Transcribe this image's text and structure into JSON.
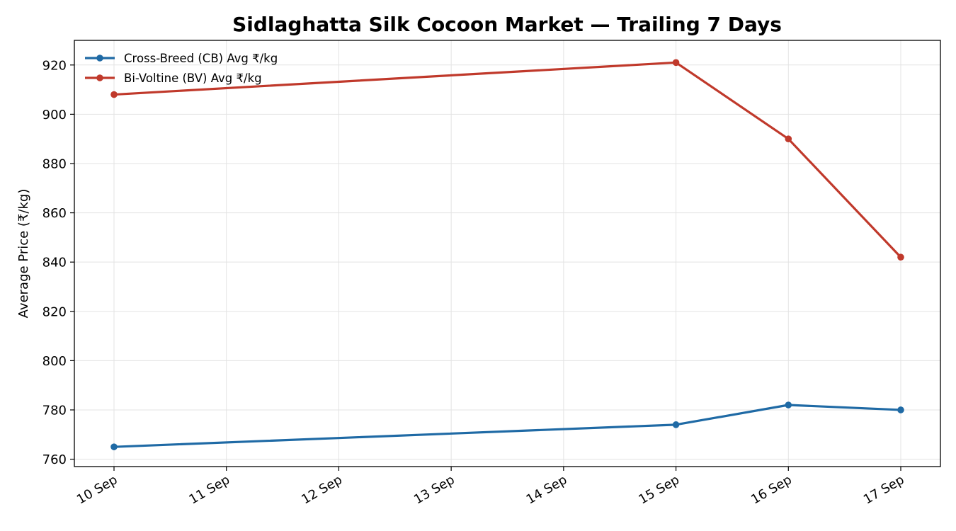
{
  "chart_data": {
    "type": "line",
    "title": "Sidlaghatta Silk Cocoon Market — Trailing 7 Days",
    "xlabel": "",
    "ylabel": "Average Price (₹/kg)",
    "x": [
      "10 Sep",
      "11 Sep",
      "12 Sep",
      "13 Sep",
      "14 Sep",
      "15 Sep",
      "16 Sep",
      "17 Sep"
    ],
    "ylim": [
      757,
      930
    ],
    "yticks": [
      760,
      780,
      800,
      820,
      840,
      860,
      880,
      900,
      920
    ],
    "grid": true,
    "legend": "top-left",
    "series": [
      {
        "name": "Cross-Breed (CB) Avg ₹/kg",
        "color": "#1f6aa5",
        "points": [
          {
            "x": "10 Sep",
            "y": 765
          },
          {
            "x": "15 Sep",
            "y": 774
          },
          {
            "x": "16 Sep",
            "y": 782
          },
          {
            "x": "17 Sep",
            "y": 780
          }
        ]
      },
      {
        "name": "Bi-Voltine (BV) Avg ₹/kg",
        "color": "#c0392b",
        "points": [
          {
            "x": "10 Sep",
            "y": 908
          },
          {
            "x": "15 Sep",
            "y": 921
          },
          {
            "x": "16 Sep",
            "y": 890
          },
          {
            "x": "17 Sep",
            "y": 842
          }
        ]
      }
    ]
  }
}
